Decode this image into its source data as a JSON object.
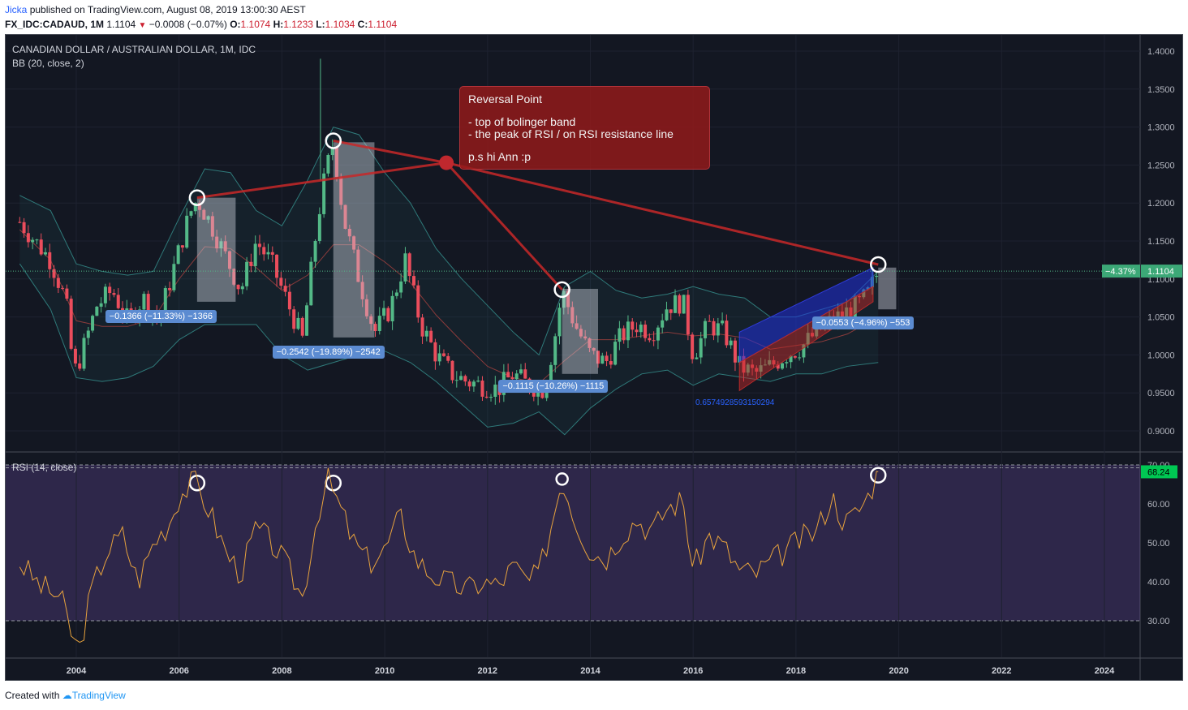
{
  "header": {
    "author": "Jicka",
    "published_text": "published on TradingView.com, August 08, 2019 13:00:30 AEST",
    "symbol": "FX_IDC:CADAUD, 1M",
    "last": "1.1104",
    "change": "−0.0008 (−0.07%)",
    "o_label": "O:",
    "o_value": "1.1074",
    "h_label": "H:",
    "h_value": "1.1233",
    "l_label": "L:",
    "l_value": "1.1034",
    "c_label": "C:",
    "c_value": "1.1104"
  },
  "footer": {
    "created_with": "Created with",
    "brand": "TradingView"
  },
  "colors": {
    "bg": "#131722",
    "up": "#53b987",
    "down": "#eb4d5c",
    "rsi": "#e8a33d",
    "bb": "#2f7a7a",
    "accent": "#2962ff"
  },
  "chart_data": {
    "type": "candlestick",
    "title": "CANADIAN DOLLAR / AUSTRALIAN DOLLAR, 1M, IDC",
    "indicator_main": "BB (20, close, 2)",
    "indicator_sub": "RSI (14, close)",
    "x_ticks": [
      "2004",
      "2006",
      "2008",
      "2010",
      "2012",
      "2014",
      "2016",
      "2018",
      "2020",
      "2022",
      "2024"
    ],
    "price_ticks": [
      "1.4000",
      "1.3500",
      "1.3000",
      "1.2500",
      "1.2000",
      "1.1500",
      "1.1000",
      "1.0500",
      "1.0000",
      "0.9500",
      "0.9000"
    ],
    "price_ylim": [
      0.87,
      1.41
    ],
    "rsi_ticks": [
      "70.00",
      "60.00",
      "50.00",
      "40.00",
      "30.00"
    ],
    "rsi_levels": [
      70,
      30
    ],
    "last_price": "1.1104",
    "last_change_pct": "−4.37%",
    "last_rsi": "68.24",
    "close_series": [
      {
        "t": 2002.9,
        "v": 1.175
      },
      {
        "t": 2003.2,
        "v": 1.15
      },
      {
        "t": 2003.5,
        "v": 1.125
      },
      {
        "t": 2003.8,
        "v": 1.07
      },
      {
        "t": 2003.95,
        "v": 0.975
      },
      {
        "t": 2004.1,
        "v": 1.0
      },
      {
        "t": 2004.4,
        "v": 1.065
      },
      {
        "t": 2004.7,
        "v": 1.085
      },
      {
        "t": 2005.0,
        "v": 1.045
      },
      {
        "t": 2005.3,
        "v": 1.075
      },
      {
        "t": 2005.6,
        "v": 1.045
      },
      {
        "t": 2005.9,
        "v": 1.115
      },
      {
        "t": 2006.2,
        "v": 1.185
      },
      {
        "t": 2006.35,
        "v": 1.205
      },
      {
        "t": 2006.6,
        "v": 1.175
      },
      {
        "t": 2006.9,
        "v": 1.13
      },
      {
        "t": 2007.2,
        "v": 1.085
      },
      {
        "t": 2007.5,
        "v": 1.15
      },
      {
        "t": 2007.8,
        "v": 1.12
      },
      {
        "t": 2008.1,
        "v": 1.07
      },
      {
        "t": 2008.4,
        "v": 1.02
      },
      {
        "t": 2008.7,
        "v": 1.18
      },
      {
        "t": 2008.85,
        "v": 1.24
      },
      {
        "t": 2009.0,
        "v": 1.28
      },
      {
        "t": 2009.2,
        "v": 1.18
      },
      {
        "t": 2009.5,
        "v": 1.1
      },
      {
        "t": 2009.8,
        "v": 1.03
      },
      {
        "t": 2010.1,
        "v": 1.06
      },
      {
        "t": 2010.4,
        "v": 1.125
      },
      {
        "t": 2010.7,
        "v": 1.04
      },
      {
        "t": 2011.0,
        "v": 1.0
      },
      {
        "t": 2011.3,
        "v": 0.975
      },
      {
        "t": 2011.6,
        "v": 0.965
      },
      {
        "t": 2011.9,
        "v": 0.96
      },
      {
        "t": 2012.2,
        "v": 0.955
      },
      {
        "t": 2012.5,
        "v": 0.975
      },
      {
        "t": 2012.8,
        "v": 0.96
      },
      {
        "t": 2013.1,
        "v": 0.955
      },
      {
        "t": 2013.3,
        "v": 1.02
      },
      {
        "t": 2013.45,
        "v": 1.085
      },
      {
        "t": 2013.7,
        "v": 1.04
      },
      {
        "t": 2014.0,
        "v": 1.0
      },
      {
        "t": 2014.3,
        "v": 0.99
      },
      {
        "t": 2014.6,
        "v": 1.025
      },
      {
        "t": 2014.9,
        "v": 1.04
      },
      {
        "t": 2015.2,
        "v": 1.03
      },
      {
        "t": 2015.5,
        "v": 1.065
      },
      {
        "t": 2015.8,
        "v": 1.07
      },
      {
        "t": 2016.0,
        "v": 1.0
      },
      {
        "t": 2016.3,
        "v": 1.04
      },
      {
        "t": 2016.6,
        "v": 1.03
      },
      {
        "t": 2016.9,
        "v": 0.985
      },
      {
        "t": 2017.2,
        "v": 0.975
      },
      {
        "t": 2017.5,
        "v": 0.985
      },
      {
        "t": 2017.8,
        "v": 1.0
      },
      {
        "t": 2018.1,
        "v": 1.01
      },
      {
        "t": 2018.4,
        "v": 1.03
      },
      {
        "t": 2018.7,
        "v": 1.045
      },
      {
        "t": 2018.95,
        "v": 1.055
      },
      {
        "t": 2019.2,
        "v": 1.065
      },
      {
        "t": 2019.4,
        "v": 1.08
      },
      {
        "t": 2019.6,
        "v": 1.11
      }
    ],
    "rsi_series": [
      {
        "t": 2002.9,
        "v": 45
      },
      {
        "t": 2003.3,
        "v": 39
      },
      {
        "t": 2003.7,
        "v": 36
      },
      {
        "t": 2003.9,
        "v": 27
      },
      {
        "t": 2004.05,
        "v": 22
      },
      {
        "t": 2004.3,
        "v": 38
      },
      {
        "t": 2004.6,
        "v": 48
      },
      {
        "t": 2004.9,
        "v": 52
      },
      {
        "t": 2005.2,
        "v": 40
      },
      {
        "t": 2005.5,
        "v": 50
      },
      {
        "t": 2005.8,
        "v": 55
      },
      {
        "t": 2006.0,
        "v": 62
      },
      {
        "t": 2006.3,
        "v": 66
      },
      {
        "t": 2006.6,
        "v": 58
      },
      {
        "t": 2006.9,
        "v": 48
      },
      {
        "t": 2007.2,
        "v": 42
      },
      {
        "t": 2007.5,
        "v": 54
      },
      {
        "t": 2007.8,
        "v": 50
      },
      {
        "t": 2008.1,
        "v": 44
      },
      {
        "t": 2008.4,
        "v": 36
      },
      {
        "t": 2008.7,
        "v": 58
      },
      {
        "t": 2008.9,
        "v": 66
      },
      {
        "t": 2009.1,
        "v": 60
      },
      {
        "t": 2009.4,
        "v": 50
      },
      {
        "t": 2009.7,
        "v": 45
      },
      {
        "t": 2010.0,
        "v": 48
      },
      {
        "t": 2010.3,
        "v": 57
      },
      {
        "t": 2010.6,
        "v": 46
      },
      {
        "t": 2010.9,
        "v": 42
      },
      {
        "t": 2011.2,
        "v": 40
      },
      {
        "t": 2011.6,
        "v": 38
      },
      {
        "t": 2011.9,
        "v": 40
      },
      {
        "t": 2012.2,
        "v": 39
      },
      {
        "t": 2012.5,
        "v": 44
      },
      {
        "t": 2012.8,
        "v": 40
      },
      {
        "t": 2013.0,
        "v": 42
      },
      {
        "t": 2013.25,
        "v": 55
      },
      {
        "t": 2013.45,
        "v": 67
      },
      {
        "t": 2013.7,
        "v": 56
      },
      {
        "t": 2014.0,
        "v": 48
      },
      {
        "t": 2014.3,
        "v": 46
      },
      {
        "t": 2014.6,
        "v": 52
      },
      {
        "t": 2014.9,
        "v": 56
      },
      {
        "t": 2015.2,
        "v": 53
      },
      {
        "t": 2015.5,
        "v": 59
      },
      {
        "t": 2015.8,
        "v": 61
      },
      {
        "t": 2016.0,
        "v": 43
      },
      {
        "t": 2016.3,
        "v": 52
      },
      {
        "t": 2016.6,
        "v": 49
      },
      {
        "t": 2016.9,
        "v": 43
      },
      {
        "t": 2017.2,
        "v": 42
      },
      {
        "t": 2017.5,
        "v": 45
      },
      {
        "t": 2017.8,
        "v": 48
      },
      {
        "t": 2018.1,
        "v": 51
      },
      {
        "t": 2018.4,
        "v": 53
      },
      {
        "t": 2018.7,
        "v": 62
      },
      {
        "t": 2018.95,
        "v": 55
      },
      {
        "t": 2019.2,
        "v": 58
      },
      {
        "t": 2019.4,
        "v": 62
      },
      {
        "t": 2019.6,
        "v": 68.24
      }
    ],
    "bb_upper": [
      {
        "t": 2002.9,
        "v": 1.21
      },
      {
        "t": 2003.5,
        "v": 1.19
      },
      {
        "t": 2004.0,
        "v": 1.12
      },
      {
        "t": 2004.5,
        "v": 1.11
      },
      {
        "t": 2005.0,
        "v": 1.105
      },
      {
        "t": 2005.5,
        "v": 1.11
      },
      {
        "t": 2006.0,
        "v": 1.18
      },
      {
        "t": 2006.5,
        "v": 1.245
      },
      {
        "t": 2007.0,
        "v": 1.24
      },
      {
        "t": 2007.5,
        "v": 1.19
      },
      {
        "t": 2008.0,
        "v": 1.17
      },
      {
        "t": 2008.5,
        "v": 1.23
      },
      {
        "t": 2009.0,
        "v": 1.3
      },
      {
        "t": 2009.5,
        "v": 1.29
      },
      {
        "t": 2010.0,
        "v": 1.24
      },
      {
        "t": 2010.5,
        "v": 1.2
      },
      {
        "t": 2011.0,
        "v": 1.14
      },
      {
        "t": 2011.5,
        "v": 1.1
      },
      {
        "t": 2012.0,
        "v": 1.065
      },
      {
        "t": 2012.5,
        "v": 1.03
      },
      {
        "t": 2013.0,
        "v": 1.0
      },
      {
        "t": 2013.5,
        "v": 1.09
      },
      {
        "t": 2014.0,
        "v": 1.11
      },
      {
        "t": 2014.5,
        "v": 1.085
      },
      {
        "t": 2015.0,
        "v": 1.075
      },
      {
        "t": 2015.5,
        "v": 1.08
      },
      {
        "t": 2016.0,
        "v": 1.09
      },
      {
        "t": 2016.5,
        "v": 1.08
      },
      {
        "t": 2017.0,
        "v": 1.075
      },
      {
        "t": 2017.5,
        "v": 1.05
      },
      {
        "t": 2018.0,
        "v": 1.05
      },
      {
        "t": 2018.5,
        "v": 1.06
      },
      {
        "t": 2019.0,
        "v": 1.07
      },
      {
        "t": 2019.6,
        "v": 1.11
      }
    ],
    "bb_lower": [
      {
        "t": 2002.9,
        "v": 1.12
      },
      {
        "t": 2003.5,
        "v": 1.06
      },
      {
        "t": 2004.0,
        "v": 0.97
      },
      {
        "t": 2004.5,
        "v": 0.965
      },
      {
        "t": 2005.0,
        "v": 0.97
      },
      {
        "t": 2005.5,
        "v": 0.985
      },
      {
        "t": 2006.0,
        "v": 1.02
      },
      {
        "t": 2006.5,
        "v": 1.04
      },
      {
        "t": 2007.0,
        "v": 1.04
      },
      {
        "t": 2007.5,
        "v": 1.04
      },
      {
        "t": 2008.0,
        "v": 1.0
      },
      {
        "t": 2008.5,
        "v": 0.98
      },
      {
        "t": 2009.0,
        "v": 0.99
      },
      {
        "t": 2009.5,
        "v": 1.0
      },
      {
        "t": 2010.0,
        "v": 1.005
      },
      {
        "t": 2010.5,
        "v": 0.99
      },
      {
        "t": 2011.0,
        "v": 0.965
      },
      {
        "t": 2011.5,
        "v": 0.935
      },
      {
        "t": 2012.0,
        "v": 0.905
      },
      {
        "t": 2012.5,
        "v": 0.91
      },
      {
        "t": 2013.0,
        "v": 0.925
      },
      {
        "t": 2013.5,
        "v": 0.895
      },
      {
        "t": 2014.0,
        "v": 0.93
      },
      {
        "t": 2014.5,
        "v": 0.955
      },
      {
        "t": 2015.0,
        "v": 0.975
      },
      {
        "t": 2015.5,
        "v": 0.98
      },
      {
        "t": 2016.0,
        "v": 0.96
      },
      {
        "t": 2016.5,
        "v": 0.975
      },
      {
        "t": 2017.0,
        "v": 0.97
      },
      {
        "t": 2017.5,
        "v": 0.965
      },
      {
        "t": 2018.0,
        "v": 0.975
      },
      {
        "t": 2018.5,
        "v": 0.975
      },
      {
        "t": 2019.0,
        "v": 0.985
      },
      {
        "t": 2019.6,
        "v": 0.99
      }
    ],
    "reversal_points": [
      {
        "t": 2006.35,
        "price": 1.207,
        "rsi": 66
      },
      {
        "t": 2009.0,
        "price": 1.282,
        "rsi": 66
      },
      {
        "t": 2013.45,
        "price": 1.086,
        "rsi": 67
      },
      {
        "t": 2019.6,
        "price": 1.119,
        "rsi": 68
      }
    ],
    "hub": {
      "t": 2011.2,
      "price": 1.253
    },
    "measurements": [
      {
        "label": "−0.1366 (−11.33%) −1366",
        "t": 2005.75,
        "price": 1.05
      },
      {
        "label": "−0.2542 (−19.89%) −2542",
        "t": 2009.0,
        "price": 1.003
      },
      {
        "label": "−0.1115 (−10.26%) −1115",
        "t": 2013.4,
        "price": 0.958
      },
      {
        "label": "−0.0553 (−4.96%) −553",
        "t": 2019.4,
        "price": 1.041
      }
    ],
    "measure_boxes": [
      {
        "t0": 2006.35,
        "t1": 2007.1,
        "p0": 1.207,
        "p1": 1.07
      },
      {
        "t0": 2009.0,
        "t1": 2009.8,
        "p0": 1.28,
        "p1": 1.023
      },
      {
        "t0": 2013.45,
        "t1": 2014.15,
        "p0": 1.087,
        "p1": 0.975
      },
      {
        "t0": 2019.6,
        "t1": 2019.95,
        "p0": 1.115,
        "p1": 1.06
      }
    ],
    "channel": {
      "t0": 2016.9,
      "t1": 2019.5,
      "lower0": 0.953,
      "lower1": 1.07,
      "mid0": 0.99,
      "mid1": 1.09,
      "upper0": 1.03,
      "upper1": 1.115
    },
    "fib_label": "0.6574928593150294",
    "annotation": {
      "title": "Reversal Point",
      "lines": [
        "- top of bolinger band",
        "- the peak of RSI / on RSI resistance line"
      ],
      "ps": "p.s hi Ann :p"
    }
  }
}
